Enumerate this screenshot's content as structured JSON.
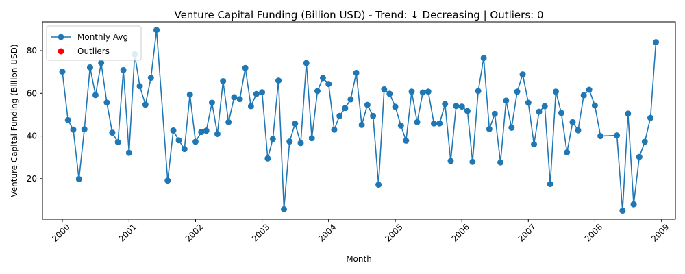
{
  "chart_data": {
    "type": "line",
    "title": "Venture Capital Funding (Billion USD) - Trend: ↓ Decreasing | Outliers: 0",
    "xlabel": "Month",
    "ylabel": "Venture Capital Funding (Billion USD)",
    "x_ticks": [
      "2000",
      "2001",
      "2002",
      "2003",
      "2004",
      "2005",
      "2006",
      "2007",
      "2008",
      "2009"
    ],
    "y_ticks": [
      20,
      40,
      60,
      80
    ],
    "xlim": [
      "1999-09-14",
      "2009-03-18"
    ],
    "ylim": [
      1.0,
      93.5
    ],
    "grid": false,
    "legend": {
      "location": "top-left",
      "entries": [
        "Monthly Avg",
        "Outliers"
      ]
    },
    "colors": {
      "series": "#1f77b4",
      "outliers": "#ff0000"
    },
    "series": [
      {
        "name": "Monthly Avg",
        "marker": "circle",
        "points": [
          [
            "2000-01-01",
            70.2
          ],
          [
            "2000-02-01",
            47.5
          ],
          [
            "2000-03-01",
            43.0
          ],
          [
            "2000-04-01",
            19.8
          ],
          [
            "2000-05-01",
            43.2
          ],
          [
            "2000-06-01",
            72.2
          ],
          [
            "2000-07-01",
            59.2
          ],
          [
            "2000-08-01",
            74.3
          ],
          [
            "2000-09-01",
            55.7
          ],
          [
            "2000-10-01",
            41.6
          ],
          [
            "2000-11-01",
            37.1
          ],
          [
            "2000-12-01",
            70.9
          ],
          [
            "2001-01-01",
            32.1
          ],
          [
            "2001-02-01",
            78.3
          ],
          [
            "2001-03-01",
            63.4
          ],
          [
            "2001-04-01",
            54.7
          ],
          [
            "2001-05-01",
            67.3
          ],
          [
            "2001-06-01",
            89.7
          ],
          [
            "2001-08-01",
            19.1
          ],
          [
            "2001-09-01",
            42.6
          ],
          [
            "2001-10-01",
            38.0
          ],
          [
            "2001-11-01",
            33.9
          ],
          [
            "2001-12-01",
            59.4
          ],
          [
            "2002-01-01",
            37.3
          ],
          [
            "2002-02-01",
            41.9
          ],
          [
            "2002-03-01",
            42.5
          ],
          [
            "2002-04-01",
            55.6
          ],
          [
            "2002-05-01",
            41.0
          ],
          [
            "2002-06-01",
            65.7
          ],
          [
            "2002-07-01",
            46.5
          ],
          [
            "2002-08-01",
            58.2
          ],
          [
            "2002-09-01",
            57.3
          ],
          [
            "2002-10-01",
            71.9
          ],
          [
            "2002-11-01",
            54.0
          ],
          [
            "2002-12-01",
            59.7
          ],
          [
            "2003-01-01",
            60.5
          ],
          [
            "2003-02-01",
            29.5
          ],
          [
            "2003-03-01",
            38.6
          ],
          [
            "2003-04-01",
            66.0
          ],
          [
            "2003-05-01",
            5.7
          ],
          [
            "2003-06-01",
            37.4
          ],
          [
            "2003-07-01",
            45.8
          ],
          [
            "2003-08-01",
            36.7
          ],
          [
            "2003-09-01",
            74.2
          ],
          [
            "2003-10-01",
            39.0
          ],
          [
            "2003-11-01",
            61.1
          ],
          [
            "2003-12-01",
            67.2
          ],
          [
            "2004-01-01",
            64.4
          ],
          [
            "2004-02-01",
            43.0
          ],
          [
            "2004-03-01",
            49.4
          ],
          [
            "2004-04-01",
            53.1
          ],
          [
            "2004-05-01",
            57.2
          ],
          [
            "2004-06-01",
            69.6
          ],
          [
            "2004-07-01",
            45.2
          ],
          [
            "2004-08-01",
            54.6
          ],
          [
            "2004-09-01",
            49.4
          ],
          [
            "2004-10-01",
            17.2
          ],
          [
            "2004-11-01",
            61.9
          ],
          [
            "2004-12-01",
            59.8
          ],
          [
            "2005-01-01",
            53.7
          ],
          [
            "2005-02-01",
            44.9
          ],
          [
            "2005-03-01",
            37.8
          ],
          [
            "2005-04-01",
            60.8
          ],
          [
            "2005-05-01",
            46.5
          ],
          [
            "2005-06-01",
            60.4
          ],
          [
            "2005-07-01",
            60.8
          ],
          [
            "2005-08-01",
            45.9
          ],
          [
            "2005-09-01",
            45.9
          ],
          [
            "2005-10-01",
            55.0
          ],
          [
            "2005-11-01",
            28.3
          ],
          [
            "2005-12-01",
            54.1
          ],
          [
            "2006-01-01",
            53.8
          ],
          [
            "2006-02-01",
            51.7
          ],
          [
            "2006-03-01",
            27.9
          ],
          [
            "2006-04-01",
            61.1
          ],
          [
            "2006-05-01",
            76.6
          ],
          [
            "2006-06-01",
            43.3
          ],
          [
            "2006-07-01",
            50.4
          ],
          [
            "2006-08-01",
            27.6
          ],
          [
            "2006-09-01",
            56.6
          ],
          [
            "2006-10-01",
            43.9
          ],
          [
            "2006-11-01",
            60.8
          ],
          [
            "2006-12-01",
            68.9
          ],
          [
            "2007-01-01",
            55.6
          ],
          [
            "2007-02-01",
            36.1
          ],
          [
            "2007-03-01",
            51.4
          ],
          [
            "2007-04-01",
            54.0
          ],
          [
            "2007-05-01",
            17.5
          ],
          [
            "2007-06-01",
            60.8
          ],
          [
            "2007-07-01",
            50.8
          ],
          [
            "2007-08-01",
            32.3
          ],
          [
            "2007-09-01",
            46.5
          ],
          [
            "2007-10-01",
            42.7
          ],
          [
            "2007-11-01",
            59.1
          ],
          [
            "2007-12-01",
            61.7
          ],
          [
            "2008-01-01",
            54.3
          ],
          [
            "2008-02-01",
            40.0
          ],
          [
            "2008-05-01",
            40.3
          ],
          [
            "2008-06-01",
            5.0
          ],
          [
            "2008-07-01",
            50.5
          ],
          [
            "2008-08-01",
            8.0
          ],
          [
            "2008-09-01",
            30.2
          ],
          [
            "2008-10-01",
            37.3
          ],
          [
            "2008-11-01",
            48.5
          ],
          [
            "2008-12-01",
            84.0
          ]
        ]
      },
      {
        "name": "Outliers",
        "marker": "circle",
        "points": []
      }
    ]
  }
}
